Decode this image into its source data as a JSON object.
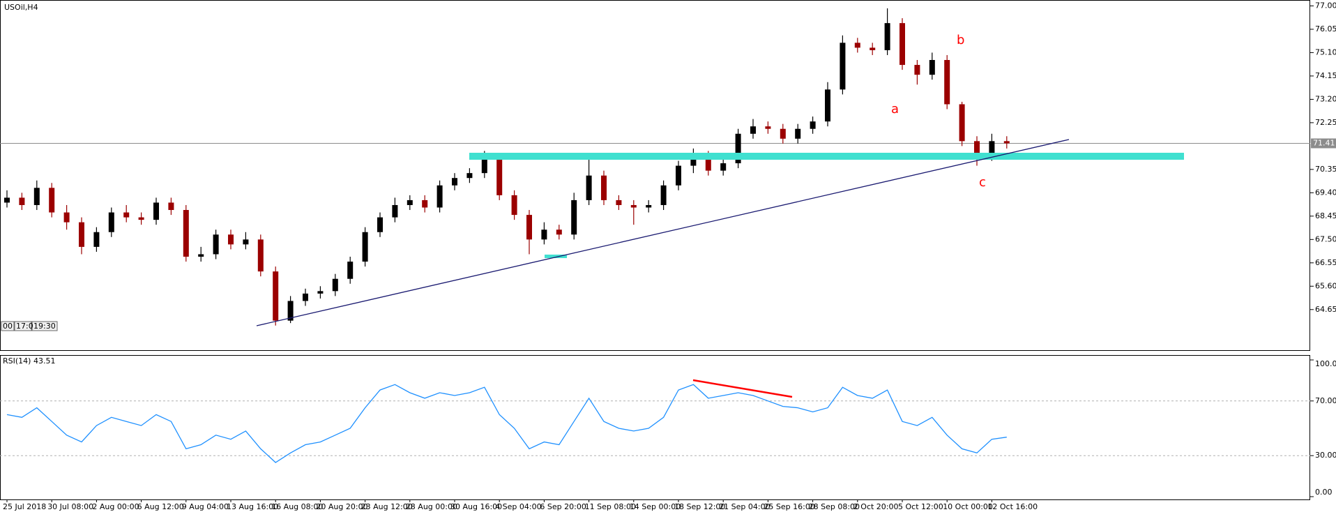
{
  "title": "USOil,H4",
  "buttons": [
    "00",
    "17:0",
    "19:30"
  ],
  "chart_data": [
    {
      "type": "candlestick",
      "categories": [
        "25 Jul 2018",
        null,
        null,
        "30 Jul 08:00",
        null,
        null,
        "2 Aug 00:00",
        null,
        null,
        "6 Aug 12:00",
        null,
        null,
        "9 Aug 04:00",
        null,
        null,
        "13 Aug 16:00",
        null,
        null,
        "16 Aug 08:00",
        null,
        null,
        "20 Aug 20:00",
        null,
        null,
        "23 Aug 12:00",
        null,
        null,
        "28 Aug 00:00",
        null,
        null,
        "30 Aug 16:00",
        null,
        null,
        "4 Sep 04:00",
        null,
        null,
        "6 Sep 20:00",
        null,
        null,
        "11 Sep 08:00",
        null,
        null,
        "14 Sep 00:00",
        null,
        null,
        "18 Sep 12:00",
        null,
        null,
        "21 Sep 04:00",
        null,
        null,
        "25 Sep 16:00",
        null,
        null,
        "28 Sep 08:00",
        null,
        null,
        "2 Oct 20:00",
        null,
        null,
        "5 Oct 12:00",
        null,
        null,
        "10 Oct 00:00",
        null,
        null,
        "12 Oct 16:00",
        null
      ],
      "open": [
        69.0,
        69.2,
        68.9,
        69.6,
        68.6,
        68.2,
        67.2,
        67.8,
        68.6,
        68.4,
        68.3,
        69.0,
        68.7,
        66.8,
        66.9,
        67.7,
        67.3,
        67.5,
        66.2,
        64.2,
        65.0,
        65.3,
        65.4,
        65.9,
        66.6,
        67.8,
        68.4,
        68.9,
        69.1,
        68.8,
        69.7,
        70.0,
        70.2,
        70.9,
        69.3,
        68.5,
        67.5,
        67.9,
        67.7,
        69.1,
        70.1,
        69.1,
        68.9,
        68.8,
        68.9,
        69.7,
        70.5,
        70.9,
        70.3,
        70.6,
        71.8,
        72.1,
        72.0,
        71.6,
        72.0,
        72.3,
        73.6,
        75.5,
        75.3,
        75.2,
        76.3,
        74.6,
        74.2,
        74.8,
        73.0,
        71.5,
        70.9,
        71.5
      ],
      "high": [
        69.5,
        69.4,
        69.9,
        69.8,
        68.9,
        68.4,
        68.0,
        68.8,
        68.9,
        68.6,
        69.2,
        69.2,
        68.9,
        67.2,
        67.9,
        67.9,
        67.8,
        67.7,
        66.4,
        65.2,
        65.5,
        65.6,
        66.1,
        66.8,
        68.0,
        68.6,
        69.2,
        69.3,
        69.3,
        69.9,
        70.2,
        70.4,
        71.1,
        71.0,
        69.5,
        68.7,
        68.2,
        68.1,
        69.4,
        70.8,
        70.3,
        69.3,
        69.1,
        69.1,
        69.9,
        70.7,
        71.2,
        71.1,
        70.9,
        72.0,
        72.4,
        72.3,
        72.2,
        72.2,
        72.5,
        73.9,
        75.8,
        75.7,
        75.5,
        76.9,
        76.5,
        74.8,
        75.1,
        75.0,
        73.1,
        71.7,
        71.8,
        71.7
      ],
      "low": [
        68.8,
        68.7,
        68.7,
        68.4,
        67.9,
        66.9,
        67.0,
        67.6,
        68.2,
        68.1,
        68.1,
        68.5,
        66.6,
        66.6,
        66.7,
        67.1,
        67.1,
        66.0,
        64.0,
        64.1,
        64.8,
        65.1,
        65.2,
        65.7,
        66.4,
        67.6,
        68.2,
        68.7,
        68.6,
        68.6,
        69.5,
        69.8,
        70.0,
        69.1,
        68.3,
        66.9,
        67.3,
        67.5,
        67.5,
        68.9,
        68.9,
        68.7,
        68.1,
        68.6,
        68.7,
        69.5,
        70.2,
        70.1,
        70.1,
        70.4,
        71.6,
        71.8,
        71.4,
        71.4,
        71.8,
        72.1,
        73.4,
        75.1,
        75.0,
        75.0,
        74.4,
        73.8,
        74.0,
        72.8,
        71.3,
        70.5,
        70.7,
        71.2
      ],
      "close": [
        69.2,
        68.9,
        69.6,
        68.6,
        68.2,
        67.2,
        67.8,
        68.6,
        68.4,
        68.3,
        69.0,
        68.7,
        66.8,
        66.9,
        67.7,
        67.3,
        67.5,
        66.2,
        64.2,
        65.0,
        65.3,
        65.4,
        65.9,
        66.6,
        67.8,
        68.4,
        68.9,
        69.1,
        68.8,
        69.7,
        70.0,
        70.2,
        70.9,
        69.3,
        68.5,
        67.5,
        67.9,
        67.7,
        69.1,
        70.1,
        69.1,
        68.9,
        68.8,
        68.9,
        69.7,
        70.5,
        70.9,
        70.3,
        70.6,
        71.8,
        72.1,
        72.0,
        71.6,
        72.0,
        72.3,
        73.6,
        75.5,
        75.3,
        75.2,
        76.3,
        74.6,
        74.2,
        74.8,
        73.0,
        71.5,
        70.9,
        71.5,
        71.41
      ],
      "up_color": "#000000",
      "down_color": "#9b0000",
      "ylim": [
        62.97,
        77.24
      ],
      "yticks": [
        {
          "value": 77.0,
          "label": "77.00"
        },
        {
          "value": 76.05,
          "label": "76.05"
        },
        {
          "value": 75.1,
          "label": "75.10"
        },
        {
          "value": 74.15,
          "label": "74.15"
        },
        {
          "value": 73.2,
          "label": "73.20"
        },
        {
          "value": 72.25,
          "label": "72.25"
        },
        {
          "value": 70.35,
          "label": "70.35"
        },
        {
          "value": 69.4,
          "label": "69.40"
        },
        {
          "value": 68.45,
          "label": "68.45"
        },
        {
          "value": 67.5,
          "label": "67.50"
        },
        {
          "value": 66.55,
          "label": "66.55"
        },
        {
          "value": 65.6,
          "label": "65.60"
        },
        {
          "value": 64.65,
          "label": "64.65"
        }
      ],
      "last_price": 71.41,
      "annotations": [
        "a",
        "b",
        "c"
      ]
    },
    {
      "type": "line",
      "title": "RSI(14) 43.51",
      "color": "#1e90ff",
      "values": [
        60,
        58,
        65,
        55,
        45,
        40,
        52,
        58,
        55,
        52,
        60,
        55,
        35,
        38,
        45,
        42,
        48,
        35,
        25,
        32,
        38,
        40,
        45,
        50,
        65,
        78,
        82,
        76,
        72,
        76,
        74,
        76,
        80,
        60,
        50,
        35,
        40,
        38,
        55,
        72,
        55,
        50,
        48,
        50,
        58,
        78,
        82,
        72,
        74,
        76,
        74,
        70,
        66,
        65,
        62,
        65,
        80,
        74,
        72,
        78,
        55,
        52,
        58,
        45,
        35,
        32,
        42,
        43.51
      ],
      "ylim": [
        0,
        100
      ],
      "yticks": [
        {
          "value": 100,
          "label": "100.00"
        },
        {
          "value": 70,
          "label": "70.00"
        },
        {
          "value": 30,
          "label": "30.00"
        },
        {
          "value": 0,
          "label": "0.00"
        }
      ],
      "levels": [
        70,
        30
      ]
    }
  ]
}
